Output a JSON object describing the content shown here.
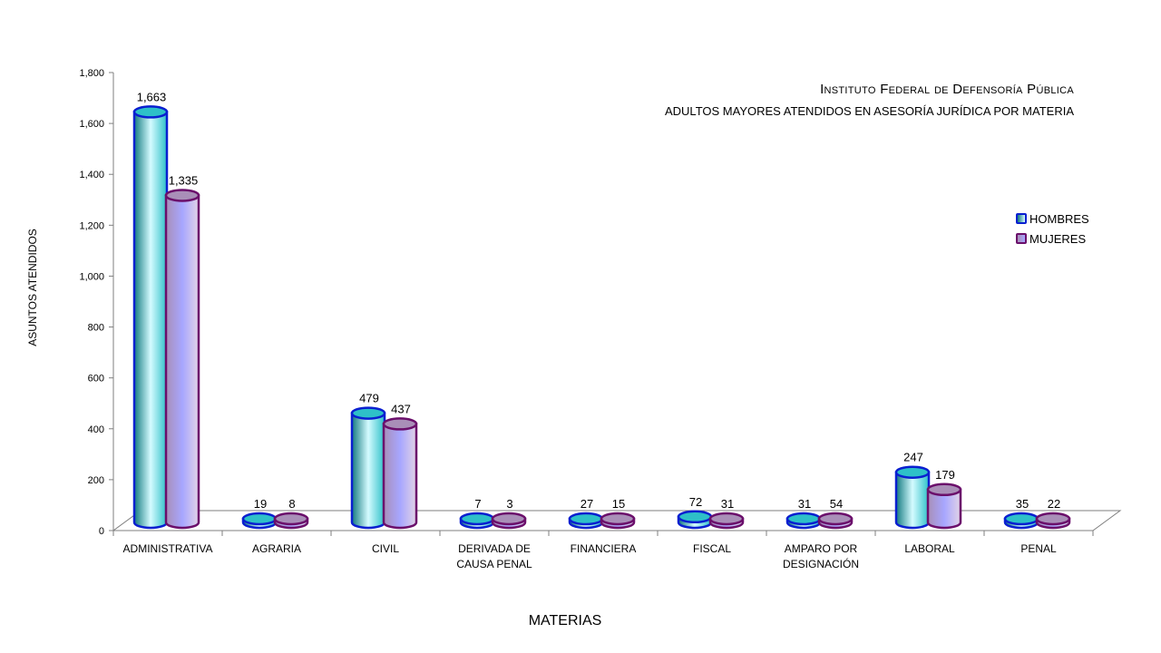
{
  "title": {
    "line1": "Instituto Federal de Defensoría Pública",
    "line2": "ADULTOS MAYORES ATENDIDOS EN ASESORÍA JURÍDICA POR MATERIA"
  },
  "colors": {
    "hombres_edge": "#0a1fd0",
    "mujeres_edge": "#6b0f6b",
    "hombres_fill": [
      "#137a80",
      "#2ec0c8",
      "#d4fbff"
    ],
    "mujeres_fill": [
      "#a98fb8",
      "#a7a6ff",
      "#e2d3e6"
    ],
    "axis": "#7f7f7f"
  },
  "chart_data": {
    "type": "bar",
    "title": "Instituto Federal de Defensoría Pública — ADULTOS MAYORES ATENDIDOS EN ASESORÍA JURÍDICA POR MATERIA",
    "xlabel": "MATERIAS",
    "ylabel": "ASUNTOS ATENDIDOS",
    "ylim": [
      0,
      1800
    ],
    "yticks": [
      "0",
      "200",
      "400",
      "600",
      "800",
      "1,000",
      "1,200",
      "1,400",
      "1,600",
      "1,800"
    ],
    "categories": [
      "ADMINISTRATIVA",
      "AGRARIA",
      "CIVIL",
      "DERIVADA DE CAUSA PENAL",
      "FINANCIERA",
      "FISCAL",
      "AMPARO POR DESIGNACIÓN",
      "LABORAL",
      "PENAL"
    ],
    "category_lines": [
      [
        "ADMINISTRATIVA"
      ],
      [
        "AGRARIA"
      ],
      [
        "CIVIL"
      ],
      [
        "DERIVADA DE",
        "CAUSA PENAL"
      ],
      [
        "FINANCIERA"
      ],
      [
        "FISCAL"
      ],
      [
        "AMPARO POR",
        "DESIGNACIÓN"
      ],
      [
        "LABORAL"
      ],
      [
        "PENAL"
      ]
    ],
    "series": [
      {
        "name": "HOMBRES",
        "values": [
          1663,
          19,
          479,
          7,
          27,
          72,
          31,
          247,
          35
        ],
        "labels": [
          "1,663",
          "19",
          "479",
          "7",
          "27",
          "72",
          "31",
          "247",
          "35"
        ]
      },
      {
        "name": "MUJERES",
        "values": [
          1335,
          8,
          437,
          3,
          15,
          31,
          54,
          179,
          22
        ],
        "labels": [
          "1,335",
          "8",
          "437",
          "3",
          "15",
          "31",
          "54",
          "179",
          "22"
        ]
      }
    ],
    "legend_position": "right",
    "grid": false,
    "style": "3d-cylinder"
  }
}
